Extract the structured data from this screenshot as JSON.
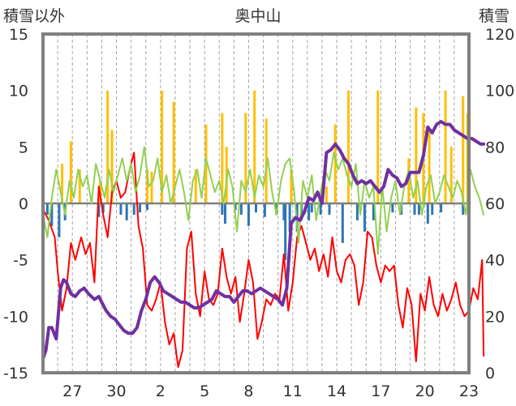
{
  "chart_data": {
    "type": "line",
    "title": "奥中山",
    "ylabel_left": "積雪以外",
    "ylabel_right": "積雪",
    "ylim_left": [
      -15,
      15
    ],
    "ylim_right": [
      0,
      120
    ],
    "yticks_left": [
      "15",
      "10",
      "5",
      "0",
      "-5",
      "-10",
      "-15"
    ],
    "yticks_right": [
      "120",
      "100",
      "80",
      "60",
      "40",
      "20",
      "0"
    ],
    "x_range": [
      25,
      54
    ],
    "xticks": [
      {
        "x": 27,
        "label": "27"
      },
      {
        "x": 30,
        "label": "30"
      },
      {
        "x": 33,
        "label": "2"
      },
      {
        "x": 36,
        "label": "5"
      },
      {
        "x": 39,
        "label": "8"
      },
      {
        "x": 42,
        "label": "11"
      },
      {
        "x": 45,
        "label": "14"
      },
      {
        "x": 48,
        "label": "17"
      },
      {
        "x": 51,
        "label": "20"
      },
      {
        "x": 54,
        "label": "23"
      }
    ],
    "grid": "vertical-daily-dashed",
    "series": [
      {
        "name": "",
        "axis": "left",
        "kind": "bar",
        "color": "#ffc000",
        "x": [
          26.3,
          26.9,
          27.5,
          28.9,
          29.4,
          29.7,
          32.1,
          32.4,
          33.1,
          33.9,
          35.4,
          36.1,
          37.2,
          37.5,
          38.8,
          39.4,
          40.2,
          41.9,
          44.3,
          44.9,
          45.8,
          47.8,
          49.9,
          50.4,
          50.9,
          51.3,
          52.4,
          52.8,
          53.6,
          53.9
        ],
        "values": [
          3.5,
          5.5,
          3.0,
          2.0,
          10.0,
          6.5,
          3.0,
          2.8,
          10.0,
          9.0,
          3.0,
          7.0,
          8.0,
          5.0,
          8.0,
          10.0,
          7.5,
          3.0,
          1.5,
          7.0,
          10.0,
          10.0,
          4.0,
          8.5,
          8.0,
          6.5,
          10.0,
          5.0,
          9.5,
          8.0
        ]
      },
      {
        "name": "",
        "axis": "left",
        "kind": "bar",
        "color": "#2e75b6",
        "x": [
          25.3,
          25.6,
          26.1,
          26.5,
          28.8,
          29.1,
          30.3,
          30.7,
          31.2,
          31.6,
          32.1,
          37.2,
          37.4,
          38.1,
          38.5,
          39.0,
          39.5,
          40.1,
          40.9,
          41.4,
          41.5,
          41.8,
          42.3,
          42.6,
          43.1,
          43.3,
          43.9,
          44.5,
          45.4,
          46.4,
          46.9,
          47.5,
          48.8,
          49.4,
          50.3,
          50.6,
          51.2,
          51.5,
          52.1,
          53.6
        ],
        "values": [
          -1.0,
          -2.0,
          -3.0,
          -1.5,
          -1.2,
          -0.8,
          -1.0,
          -1.5,
          -1.0,
          -0.8,
          -0.6,
          -1.0,
          -1.8,
          -0.6,
          -1.0,
          -2.0,
          -0.8,
          -1.2,
          -1.0,
          -1.5,
          -5.0,
          -2.5,
          -2.5,
          -1.5,
          -1.5,
          -0.8,
          -1.0,
          -1.0,
          -3.5,
          -1.5,
          -2.5,
          -1.5,
          -0.8,
          -1.0,
          -1.0,
          -1.0,
          -1.8,
          -1.0,
          -0.8,
          -1.0
        ]
      },
      {
        "name": "",
        "axis": "left",
        "kind": "line",
        "color": "#ff0000",
        "x": [
          25.0,
          25.4,
          25.8,
          26.0,
          26.3,
          26.6,
          26.9,
          27.2,
          27.6,
          27.9,
          28.2,
          28.5,
          28.8,
          29.1,
          29.4,
          29.7,
          30.0,
          30.3,
          30.6,
          30.9,
          31.2,
          31.5,
          31.8,
          32.1,
          32.4,
          32.7,
          33.0,
          33.3,
          33.6,
          33.9,
          34.2,
          34.5,
          34.8,
          35.1,
          35.4,
          35.7,
          36.0,
          36.3,
          36.6,
          36.9,
          37.2,
          37.5,
          37.8,
          38.1,
          38.4,
          38.7,
          39.0,
          39.3,
          39.6,
          39.9,
          40.2,
          40.5,
          40.8,
          41.1,
          41.4,
          41.7,
          42.0,
          42.3,
          42.6,
          42.9,
          43.2,
          43.5,
          43.8,
          44.1,
          44.4,
          44.7,
          45.0,
          45.3,
          45.6,
          45.9,
          46.2,
          46.5,
          46.8,
          47.1,
          47.4,
          47.7,
          48.0,
          48.3,
          48.6,
          48.9,
          49.2,
          49.5,
          49.8,
          50.1,
          50.4,
          50.7,
          51.0,
          51.3,
          51.6,
          51.9,
          52.2,
          52.5,
          52.8,
          53.1,
          53.4,
          53.7,
          54.0,
          54.3,
          54.6,
          54.9,
          55.0
        ],
        "values": [
          -0.5,
          -1.5,
          -3.0,
          -6.0,
          -9.5,
          -7.5,
          -3.5,
          -5.0,
          -3.0,
          -4.5,
          -3.5,
          -7.0,
          1.5,
          -1.0,
          -3.0,
          1.0,
          2.0,
          0.5,
          1.0,
          3.0,
          4.5,
          -2.0,
          -4.0,
          -9.0,
          -9.5,
          -8.5,
          -7.0,
          -10.5,
          -12.5,
          -11.5,
          -14.5,
          -13.0,
          -4.0,
          -2.5,
          -8.0,
          -10.0,
          -6.0,
          -8.5,
          -9.0,
          -8.0,
          -4.0,
          -6.5,
          -8.0,
          -6.5,
          -10.5,
          -8.0,
          -5.0,
          -7.0,
          -12.0,
          -10.5,
          -8.5,
          -9.0,
          -8.0,
          -8.5,
          -4.5,
          -9.5,
          -7.0,
          -3.0,
          -2.0,
          -3.5,
          -5.0,
          -4.0,
          -6.0,
          -4.5,
          -6.5,
          -3.0,
          -6.0,
          -7.0,
          -5.0,
          -4.5,
          -5.5,
          -9.0,
          -7.0,
          -2.5,
          -3.0,
          -5.5,
          -7.0,
          -5.5,
          -6.0,
          -5.5,
          -9.0,
          -11.0,
          -7.5,
          -9.0,
          -14.0,
          -8.0,
          -9.5,
          -6.5,
          -9.0,
          -10.0,
          -8.0,
          -9.5,
          -8.5,
          -7.0,
          -9.0,
          -10.0,
          -9.5,
          -7.5,
          -8.5,
          -5.0,
          -13.5
        ]
      },
      {
        "name": "",
        "axis": "left",
        "kind": "line",
        "color": "#92d050",
        "x": [
          25.0,
          25.3,
          25.6,
          25.9,
          26.2,
          26.5,
          26.8,
          27.1,
          27.4,
          27.7,
          28.0,
          28.3,
          28.6,
          28.9,
          29.2,
          29.5,
          29.8,
          30.1,
          30.4,
          30.7,
          31.0,
          31.3,
          31.6,
          31.9,
          32.2,
          32.5,
          32.8,
          33.1,
          33.4,
          33.7,
          34.0,
          34.3,
          34.6,
          34.9,
          35.2,
          35.5,
          35.8,
          36.1,
          36.4,
          36.7,
          37.0,
          37.3,
          37.6,
          37.9,
          38.2,
          38.5,
          38.8,
          39.1,
          39.4,
          39.7,
          40.0,
          40.3,
          40.6,
          40.9,
          41.2,
          41.5,
          41.8,
          42.1,
          42.4,
          42.7,
          43.0,
          43.3,
          43.6,
          43.9,
          44.2,
          44.5,
          44.8,
          45.1,
          45.4,
          45.7,
          46.0,
          46.3,
          46.6,
          46.9,
          47.2,
          47.5,
          47.8,
          48.1,
          48.4,
          48.7,
          49.0,
          49.3,
          49.6,
          49.9,
          50.2,
          50.5,
          50.8,
          51.1,
          51.4,
          51.7,
          52.0,
          52.3,
          52.6,
          52.9,
          53.2,
          53.5,
          53.8,
          54.1,
          54.4,
          54.7,
          55.0
        ],
        "values": [
          -1.0,
          -3.0,
          0.5,
          3.0,
          1.0,
          -1.0,
          2.0,
          0.5,
          3.0,
          1.5,
          2.5,
          0.0,
          3.5,
          2.0,
          0.5,
          3.0,
          1.0,
          2.5,
          4.0,
          2.0,
          3.5,
          1.0,
          2.5,
          5.0,
          1.5,
          2.0,
          4.0,
          1.0,
          2.5,
          0.0,
          1.5,
          3.0,
          1.0,
          -1.5,
          2.0,
          3.0,
          0.5,
          4.0,
          2.5,
          1.0,
          2.0,
          0.0,
          3.0,
          1.5,
          -2.5,
          2.0,
          1.0,
          3.0,
          0.5,
          2.5,
          1.5,
          4.0,
          1.0,
          -1.0,
          2.0,
          3.5,
          4.0,
          1.0,
          -3.5,
          2.0,
          0.5,
          2.5,
          -1.5,
          1.0,
          3.0,
          2.0,
          4.5,
          3.0,
          4.0,
          2.5,
          1.5,
          3.5,
          -1.0,
          2.0,
          0.5,
          1.5,
          -4.5,
          1.5,
          -2.5,
          0.5,
          2.0,
          -1.0,
          1.5,
          3.0,
          0.5,
          2.0,
          -1.0,
          1.5,
          2.5,
          0.0,
          1.0,
          2.5,
          1.5,
          0.5,
          2.0,
          1.0,
          -1.0,
          3.0,
          1.5,
          0.5,
          -1.0
        ]
      },
      {
        "name": "",
        "axis": "right",
        "kind": "line",
        "color": "#7030a0",
        "x": [
          25.0,
          25.2,
          25.4,
          25.6,
          25.9,
          26.2,
          26.4,
          26.6,
          26.9,
          27.2,
          27.5,
          27.8,
          28.1,
          28.5,
          28.8,
          29.0,
          29.3,
          29.6,
          29.9,
          30.2,
          30.5,
          30.8,
          31.1,
          31.4,
          31.7,
          32.0,
          32.3,
          32.6,
          32.9,
          33.2,
          33.5,
          33.8,
          34.1,
          34.4,
          34.7,
          35.0,
          35.3,
          35.6,
          35.9,
          36.2,
          36.5,
          36.8,
          37.1,
          37.4,
          37.7,
          38.0,
          38.3,
          38.6,
          38.9,
          39.2,
          39.5,
          39.8,
          40.1,
          40.4,
          40.7,
          41.0,
          41.3,
          41.6,
          41.9,
          42.2,
          42.5,
          42.8,
          43.1,
          43.4,
          43.7,
          44.0,
          44.3,
          44.6,
          44.9,
          45.2,
          45.5,
          45.8,
          46.1,
          46.4,
          46.7,
          47.0,
          47.3,
          47.6,
          47.9,
          48.2,
          48.5,
          48.8,
          49.1,
          49.4,
          49.7,
          50.0,
          50.3,
          50.6,
          50.9,
          51.2,
          51.5,
          51.8,
          52.1,
          52.4,
          52.7,
          53.0,
          53.3,
          53.6,
          53.9,
          54.2,
          54.5,
          54.8,
          55.0
        ],
        "values": [
          5,
          8,
          16,
          16,
          12,
          30,
          33,
          32,
          28,
          27,
          29,
          30,
          28,
          26,
          27,
          25,
          22,
          20,
          19,
          17,
          15,
          14,
          14,
          16,
          22,
          26,
          32,
          34,
          32,
          29,
          28,
          27,
          26,
          25,
          25,
          24,
          23,
          23,
          24,
          25,
          26,
          29,
          28,
          27,
          27,
          25,
          27,
          29,
          29,
          28,
          29,
          30,
          29,
          28,
          27,
          26,
          24,
          30,
          53,
          55,
          54,
          57,
          62,
          61,
          64,
          60,
          78,
          79,
          81,
          79,
          76,
          74,
          70,
          67,
          68,
          67,
          68,
          66,
          64,
          66,
          72,
          70,
          69,
          66,
          67,
          71,
          71,
          71,
          77,
          87,
          85,
          88,
          89,
          88,
          88,
          86,
          85,
          84,
          83,
          83,
          82,
          81,
          81
        ]
      }
    ]
  }
}
